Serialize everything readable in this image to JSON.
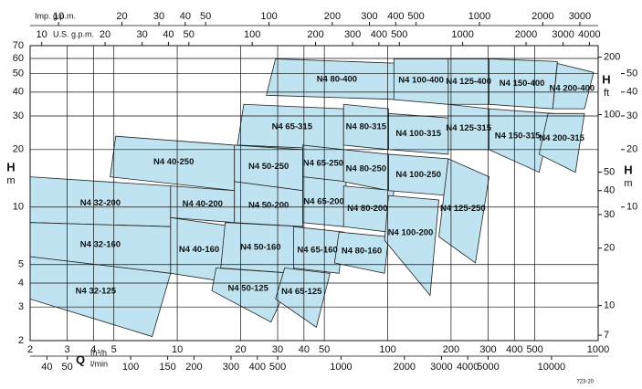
{
  "chart_data": {
    "type": "region",
    "x_label": "Q",
    "x_unit": "m³/h",
    "x2_unit": "l/min",
    "y_label": "H",
    "y_unit": "m",
    "y2_label": "H",
    "y2_unit": "ft",
    "y3_label": "H",
    "y3_unit": "m",
    "x3_label": "Imp. g.p.m.",
    "x4_label": "U.S. g.p.m.",
    "code": "723-20",
    "xscale": "log",
    "yscale": "log",
    "grid": true,
    "xlim": [
      2,
      1000
    ],
    "xticks": [
      2,
      3,
      4,
      5,
      10,
      20,
      30,
      40,
      50,
      100,
      200,
      300,
      400,
      500,
      1000
    ],
    "x2lim": [
      33.3,
      16667
    ],
    "x2ticks": [
      40,
      50,
      100,
      150,
      200,
      300,
      400,
      500,
      1000,
      2000,
      3000,
      4000,
      5000,
      10000
    ],
    "x3lim": [
      7.33,
      3666
    ],
    "x3ticks": [
      10,
      20,
      30,
      40,
      50,
      100,
      200,
      300,
      400,
      500,
      1000,
      2000,
      3000
    ],
    "x4lim": [
      8.81,
      4403
    ],
    "x4ticks": [
      10,
      20,
      30,
      40,
      50,
      100,
      200,
      300,
      400,
      500,
      1000,
      2000,
      3000,
      4000
    ],
    "ylim": [
      2,
      70
    ],
    "yticks": [
      2,
      3,
      4,
      5,
      10,
      20,
      30,
      40,
      50,
      60,
      70
    ],
    "y2lim": [
      6.56,
      229.7
    ],
    "y2ticks": [
      7,
      10,
      20,
      30,
      40,
      50,
      100,
      200
    ],
    "y3ticks": [
      10,
      20,
      30,
      40,
      50
    ],
    "color": "#bfe3f0",
    "regions": [
      {
        "name": "N4 32-200",
        "q": [
          2,
          9.3,
          9.3,
          2
        ],
        "h": [
          14.4,
          12.9,
          7.9,
          8.3
        ]
      },
      {
        "name": "N4 32-160",
        "q": [
          2,
          9.3,
          9.3,
          2
        ],
        "h": [
          8.3,
          7.9,
          4.5,
          5.5
        ]
      },
      {
        "name": "N4 32-125",
        "q": [
          2,
          9.3,
          7.6,
          2
        ],
        "h": [
          5.5,
          4.5,
          2.1,
          3.3
        ]
      },
      {
        "name": "N4 40-250",
        "q": [
          5.1,
          18.7,
          18.7,
          4.8
        ],
        "h": [
          23.5,
          21.1,
          12.2,
          14.4
        ]
      },
      {
        "name": "N4 40-200",
        "q": [
          9.3,
          18.7,
          18.7,
          9.3
        ],
        "h": [
          12.9,
          12.2,
          8.3,
          8.8
        ]
      },
      {
        "name": "N4 40-160",
        "q": [
          9.3,
          18.7,
          16.1,
          9.3
        ],
        "h": [
          8.8,
          7.9,
          4.1,
          4.5
        ]
      },
      {
        "name": "N4 50-250",
        "q": [
          18.7,
          39.5,
          39.5,
          18.7
        ],
        "h": [
          21.1,
          20,
          12.2,
          13.6
        ]
      },
      {
        "name": "N4 50-200",
        "q": [
          18.7,
          39.5,
          39.5,
          18.7
        ],
        "h": [
          13.6,
          12.2,
          7.9,
          8.3
        ]
      },
      {
        "name": "N4 50-160",
        "q": [
          16.9,
          39.5,
          35.7,
          16.1
        ],
        "h": [
          8.3,
          7.9,
          4.5,
          4.8
        ]
      },
      {
        "name": "N4 50-125",
        "q": [
          15.3,
          35.7,
          27.9,
          14.6
        ],
        "h": [
          4.8,
          4.5,
          2.5,
          3.65
        ]
      },
      {
        "name": "N4 65-315",
        "q": [
          20.7,
          61.7,
          61.7,
          19.3
        ],
        "h": [
          34.5,
          32.7,
          20,
          21.1
        ]
      },
      {
        "name": "N4 65-250",
        "q": [
          39.5,
          61.7,
          61.7,
          39.5
        ],
        "h": [
          21.1,
          20,
          13.6,
          14.4
        ]
      },
      {
        "name": "N4 65-200",
        "q": [
          39.5,
          63.5,
          61.7,
          39.5
        ],
        "h": [
          14.4,
          13.6,
          7.9,
          8.3
        ]
      },
      {
        "name": "N4 65-160",
        "q": [
          35.7,
          61.7,
          58.7,
          35.7
        ],
        "h": [
          7.9,
          7.4,
          4.5,
          4.8
        ]
      },
      {
        "name": "N4 65-125",
        "q": [
          32.4,
          53.2,
          45.8,
          29.3
        ],
        "h": [
          4.8,
          4.5,
          2.35,
          3.3
        ]
      },
      {
        "name": "N4 80-400",
        "q": [
          29.3,
          118,
          118,
          26.5
        ],
        "h": [
          59.7,
          56.5,
          36.5,
          38.5
        ]
      },
      {
        "name": "N4 80-315",
        "q": [
          61.7,
          101,
          101,
          61.7
        ],
        "h": [
          34.5,
          32.7,
          20,
          21.1
        ]
      },
      {
        "name": "N4 80-250",
        "q": [
          61.7,
          101,
          101,
          61.7
        ],
        "h": [
          20,
          18.9,
          12.2,
          13.6
        ]
      },
      {
        "name": "N4 80-200",
        "q": [
          61.7,
          107,
          101,
          61.7
        ],
        "h": [
          12.9,
          12.2,
          7.4,
          7.9
        ]
      },
      {
        "name": "N4 80-160",
        "q": [
          58.7,
          101,
          96.6,
          55.9
        ],
        "h": [
          7.4,
          7.0,
          4.5,
          5.1
        ]
      },
      {
        "name": "N4 100-400",
        "q": [
          107,
          194,
          194,
          107
        ],
        "h": [
          59.7,
          59.7,
          34.5,
          36.5
        ]
      },
      {
        "name": "N4 100-315",
        "q": [
          101,
          194,
          194,
          101
        ],
        "h": [
          30.9,
          29.3,
          18.9,
          20
        ]
      },
      {
        "name": "N4 100-250",
        "q": [
          101,
          194,
          194,
          101
        ],
        "h": [
          18.9,
          17.9,
          11.5,
          12.2
        ]
      },
      {
        "name": "N4 100-200",
        "q": [
          101,
          175,
          159,
          96.6
        ],
        "h": [
          11.5,
          10.9,
          3.45,
          6.7
        ]
      },
      {
        "name": "N4 125-400",
        "q": [
          194,
          303,
          303,
          194
        ],
        "h": [
          59.7,
          59.7,
          34.5,
          34.5
        ]
      },
      {
        "name": "N4 125-315",
        "q": [
          194,
          303,
          303,
          194
        ],
        "h": [
          34.5,
          32.7,
          20,
          20
        ]
      },
      {
        "name": "N4 125-250",
        "q": [
          194,
          303,
          261,
          175
        ],
        "h": [
          17.9,
          14.4,
          5.1,
          7.0
        ]
      },
      {
        "name": "N4 150-400",
        "q": [
          303,
          640,
          608,
          303
        ],
        "h": [
          59.7,
          57.8,
          32.7,
          34.5
        ]
      },
      {
        "name": "N4 150-315",
        "q": [
          303,
          608,
          524,
          303
        ],
        "h": [
          32.7,
          30.9,
          15.2,
          20
        ]
      },
      {
        "name": "N4 200-400",
        "q": [
          640,
          951,
          861,
          608
        ],
        "h": [
          56.5,
          50.7,
          32.7,
          32.7
        ]
      },
      {
        "name": "N4 200-315",
        "q": [
          578,
          861,
          780,
          524
        ],
        "h": [
          30.9,
          30.9,
          15.2,
          18.9
        ]
      }
    ]
  }
}
